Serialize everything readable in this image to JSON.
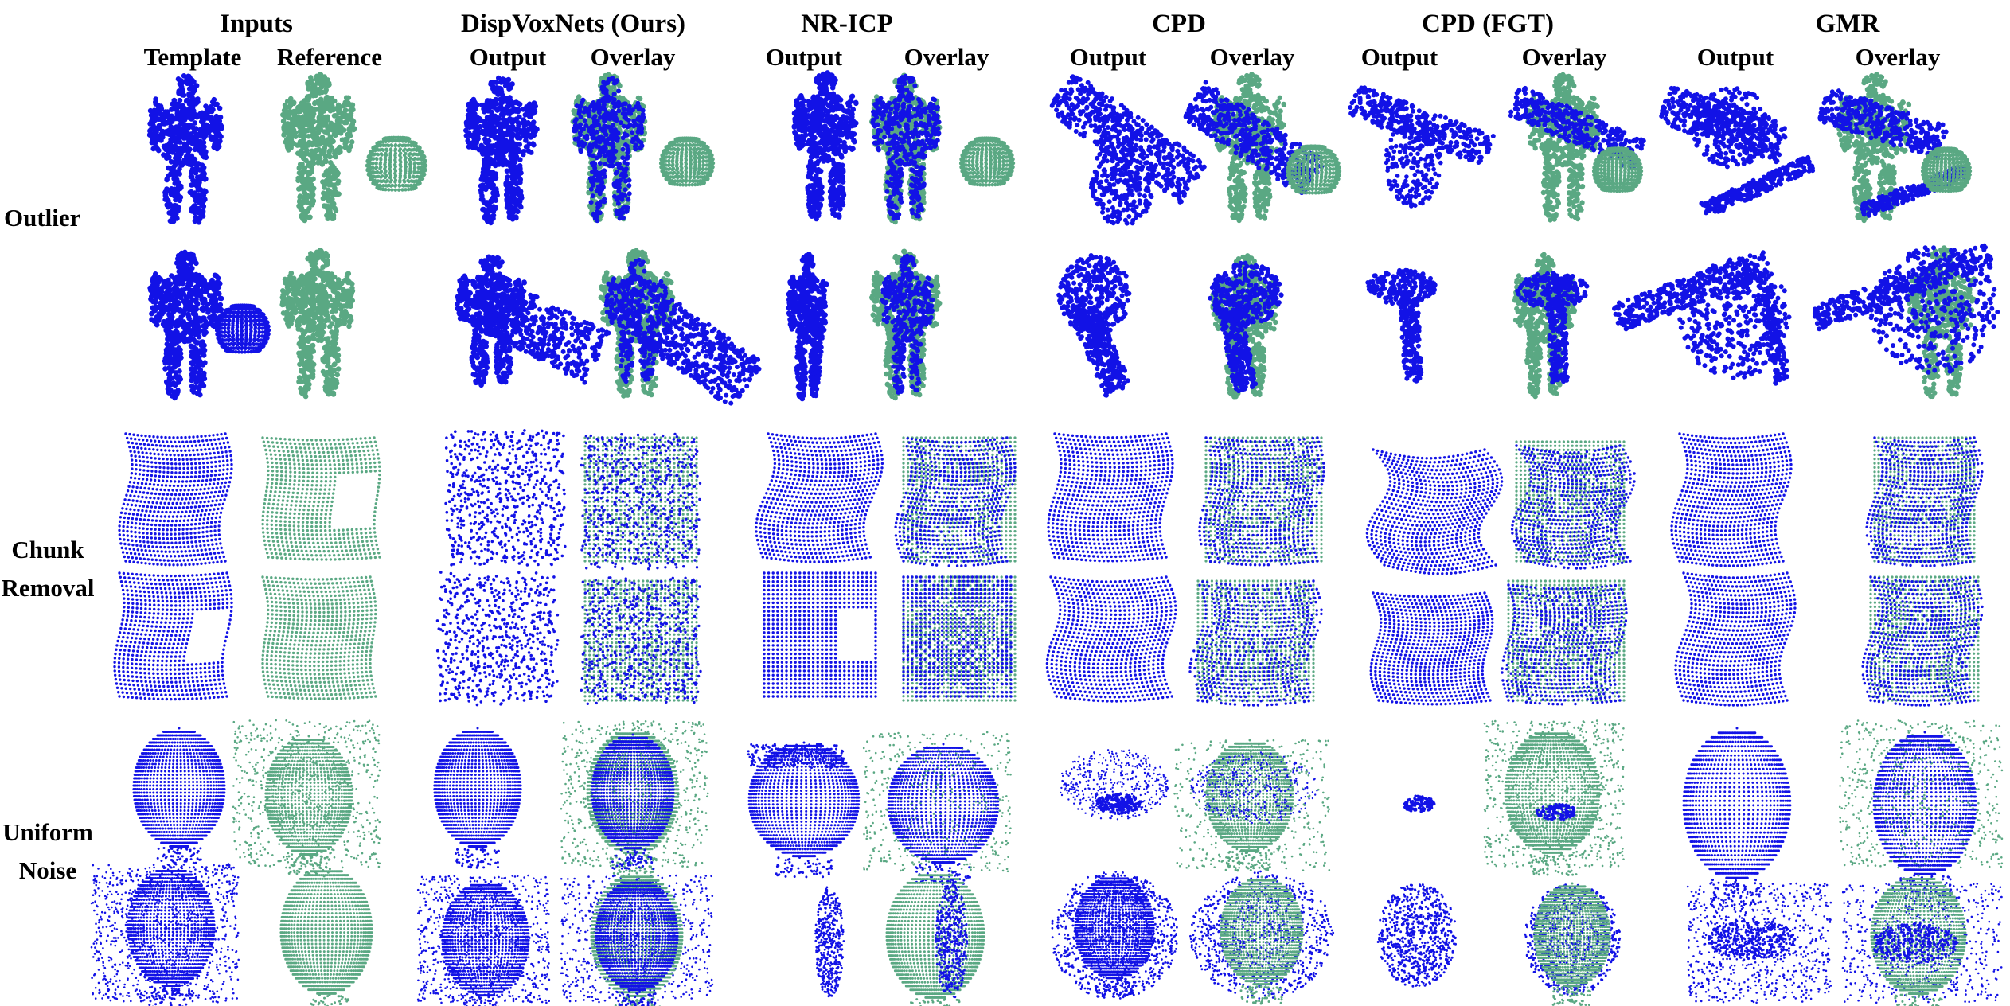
{
  "header": {
    "groups": [
      {
        "label": "Inputs",
        "cx": 0
      },
      {
        "label": "DispVoxNets (Ours)"
      },
      {
        "label": "NR-ICP"
      },
      {
        "label": "CPD"
      },
      {
        "label": "CPD (FGT)"
      },
      {
        "label": "GMR"
      }
    ],
    "subheaders": [
      "Template",
      "Reference",
      "Output",
      "Overlay",
      "Output",
      "Overlay",
      "Output",
      "Overlay",
      "Output",
      "Overlay",
      "Output",
      "Overlay"
    ]
  },
  "rows": {
    "outlier": "Outlier",
    "chunk_line1": "Chunk",
    "chunk_line2": "Removal",
    "noise_line1": "Uniform",
    "noise_line2": "Noise"
  },
  "colors": {
    "template": "#1212e6",
    "reference": "#5aa883",
    "background": "#ffffff"
  }
}
